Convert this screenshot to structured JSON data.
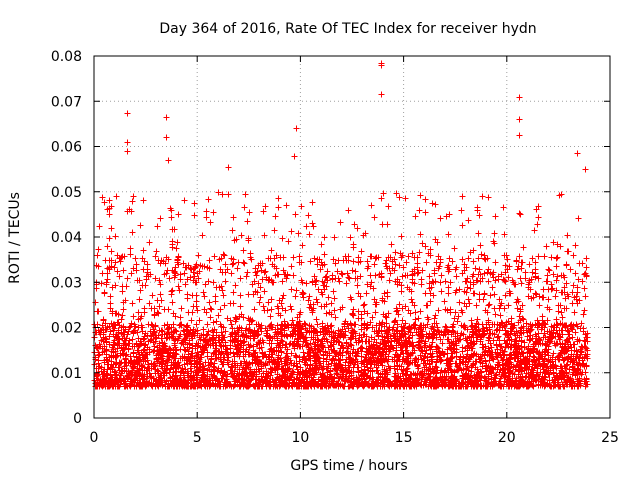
{
  "chart_data": {
    "type": "scatter",
    "title": "Day 364 of 2016, Rate Of TEC Index for receiver hydn",
    "xlabel": "GPS time / hours",
    "ylabel": "ROTI / TECUs",
    "xlim": [
      0,
      25
    ],
    "ylim": [
      0,
      0.08
    ],
    "x_ticks": [
      0,
      5,
      10,
      15,
      20,
      25
    ],
    "x_tick_labels": [
      "0",
      "5",
      "10",
      "15",
      "20",
      "25"
    ],
    "y_ticks": [
      0,
      0.01,
      0.02,
      0.03,
      0.04,
      0.05,
      0.06,
      0.07,
      0.08
    ],
    "y_tick_labels": [
      "0",
      "0.01",
      "0.02",
      "0.03",
      "0.04",
      "0.05",
      "0.06",
      "0.07",
      "0.08"
    ],
    "grid": true,
    "marker": "+",
    "color": "#ff0000",
    "series": [
      {
        "name": "ROTI",
        "time_range_hours": [
          0,
          23.9
        ],
        "typical_range": [
          0.004,
          0.03
        ],
        "notable_points": [
          {
            "x": 1.6,
            "y": 0.0675
          },
          {
            "x": 1.6,
            "y": 0.061
          },
          {
            "x": 1.6,
            "y": 0.059
          },
          {
            "x": 3.5,
            "y": 0.0665
          },
          {
            "x": 3.5,
            "y": 0.062
          },
          {
            "x": 3.6,
            "y": 0.057
          },
          {
            "x": 6.5,
            "y": 0.0555
          },
          {
            "x": 9.8,
            "y": 0.064
          },
          {
            "x": 9.7,
            "y": 0.058
          },
          {
            "x": 13.9,
            "y": 0.0785
          },
          {
            "x": 13.9,
            "y": 0.078
          },
          {
            "x": 13.9,
            "y": 0.0715
          },
          {
            "x": 20.6,
            "y": 0.071
          },
          {
            "x": 20.6,
            "y": 0.066
          },
          {
            "x": 20.6,
            "y": 0.0625
          },
          {
            "x": 23.4,
            "y": 0.0585
          },
          {
            "x": 23.8,
            "y": 0.055
          }
        ]
      }
    ]
  }
}
